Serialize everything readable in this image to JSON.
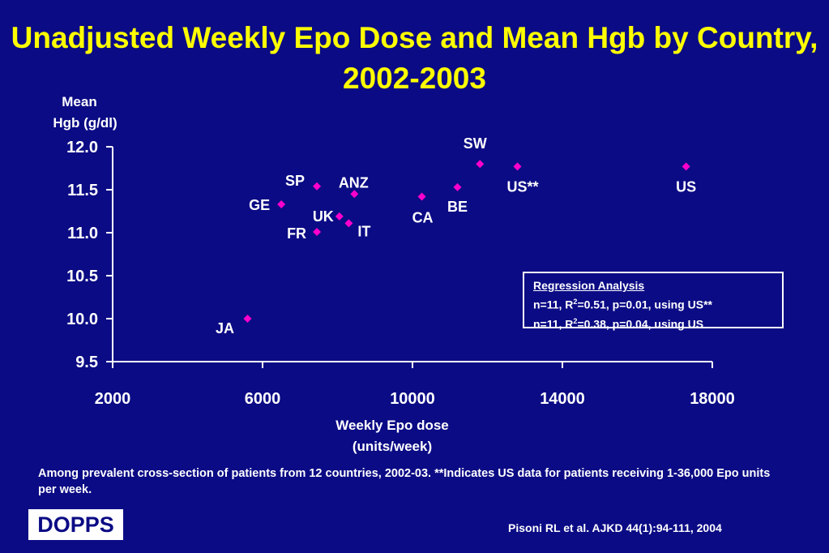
{
  "title": "Unadjusted Weekly Epo Dose and Mean Hgb by Country, 2002-2003",
  "colors": {
    "background": "#0b0b85",
    "title": "#ffff00",
    "marker": "#ff00cc",
    "text": "#ffffff"
  },
  "chart_data": {
    "type": "scatter",
    "xlabel_line1": "Weekly Epo dose",
    "xlabel_line2": "(units/week)",
    "ylabel_line1": "Mean",
    "ylabel_line2": "Hgb (g/dl)",
    "xlim": [
      2000,
      18000
    ],
    "ylim": [
      9.5,
      12.0
    ],
    "x_ticks": [
      2000,
      6000,
      10000,
      14000,
      18000
    ],
    "y_ticks": [
      "12.0",
      "11.5",
      "11.0",
      "10.5",
      "10.0",
      "9.5"
    ],
    "points": [
      {
        "label": "JA",
        "x": 5600,
        "y": 10.0
      },
      {
        "label": "GE",
        "x": 6500,
        "y": 11.33
      },
      {
        "label": "SP",
        "x": 7450,
        "y": 11.54
      },
      {
        "label": "FR",
        "x": 7450,
        "y": 11.01
      },
      {
        "label": "UK",
        "x": 8050,
        "y": 11.19
      },
      {
        "label": "IT",
        "x": 8300,
        "y": 11.11
      },
      {
        "label": "ANZ",
        "x": 8450,
        "y": 11.45
      },
      {
        "label": "CA",
        "x": 10250,
        "y": 11.42
      },
      {
        "label": "BE",
        "x": 11200,
        "y": 11.53
      },
      {
        "label": "SW",
        "x": 11800,
        "y": 11.8
      },
      {
        "label": "US**",
        "x": 12800,
        "y": 11.77
      },
      {
        "label": "US",
        "x": 17300,
        "y": 11.77
      }
    ],
    "grid": false,
    "legend": "none"
  },
  "regression": {
    "heading": "Regression Analysis",
    "line1_pre": "n=11, R",
    "line1_sup": "2",
    "line1_post": "=0.51, p=0.01, using US**",
    "line2_pre": "n=11, R",
    "line2_sup": "2",
    "line2_post": "=0.38, p=0.04, using US"
  },
  "footnote": "Among prevalent cross-section of patients from 12 countries, 2002-03. **Indicates US data for patients receiving 1-36,000 Epo units per week.",
  "citation": "Pisoni RL et al. AJKD 44(1):94-111, 2004",
  "logo_text": "DOPPS"
}
